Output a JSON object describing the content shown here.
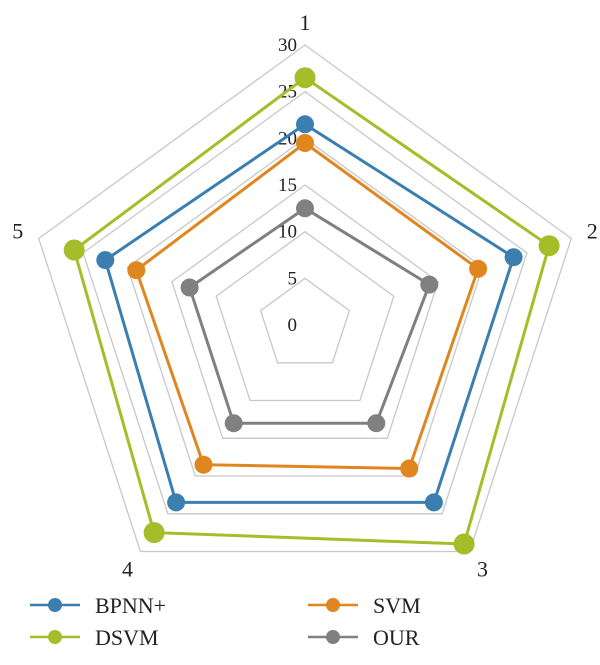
{
  "chart_data": {
    "type": "radar",
    "title": "",
    "axes": [
      "1",
      "2",
      "3",
      "4",
      "5"
    ],
    "rlim": [
      0,
      30
    ],
    "ticks": [
      "0",
      "5",
      "10",
      "15",
      "20",
      "25",
      "30"
    ],
    "tick_values": [
      0,
      5,
      10,
      15,
      20,
      25,
      30
    ],
    "grid": true,
    "legend_position": "bottom",
    "series": [
      {
        "name": "BPNN+",
        "color": "#3a7fb0",
        "values": [
          21.5,
          23.5,
          23.5,
          23.5,
          22.5
        ]
      },
      {
        "name": "SVM",
        "color": "#e0861e",
        "values": [
          19.5,
          19.5,
          19.0,
          18.5,
          19.0
        ]
      },
      {
        "name": "DSVM",
        "color": "#a5bd28",
        "values": [
          26.5,
          27.5,
          29.0,
          27.5,
          26.0
        ]
      },
      {
        "name": "OUR",
        "color": "#808080",
        "values": [
          12.5,
          14.0,
          13.0,
          13.0,
          13.0
        ]
      }
    ]
  }
}
